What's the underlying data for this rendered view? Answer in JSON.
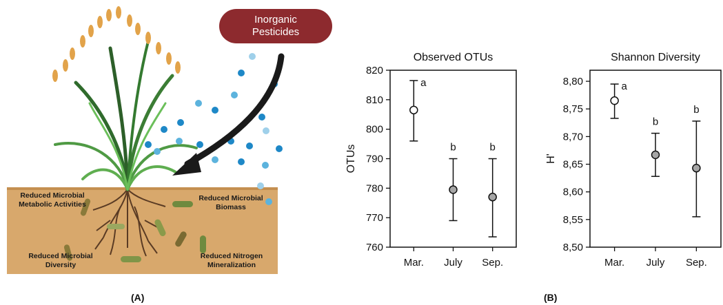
{
  "panel_a": {
    "badge": "Inorganic\nPesticides",
    "soil_labels": [
      "Reduced Microbial\nMetabolic Activities",
      "Reduced Microbial\nBiomass",
      "Reduced Microbial\nDiversity",
      "Reduced Nitrogen\nMineralization"
    ],
    "caption": "(A)"
  },
  "panel_b": {
    "caption": "(B)"
  },
  "chart_data": [
    {
      "type": "scatter",
      "title": "Observed OTUs",
      "ylabel": "OTUs",
      "xlabel": "",
      "categories": [
        "Mar.",
        "July",
        "Sep."
      ],
      "values": [
        806.5,
        779.5,
        777
      ],
      "err_low": [
        796,
        769,
        763.5
      ],
      "err_high": [
        816.5,
        790,
        790
      ],
      "groups": [
        "a",
        "b",
        "b"
      ],
      "ylim": [
        760,
        820
      ],
      "yticks": [
        "760",
        "770",
        "780",
        "790",
        "800",
        "810",
        "820"
      ],
      "colors": {
        "first": "#ffffff",
        "rest": "#a6a6a6"
      }
    },
    {
      "type": "scatter",
      "title": "Shannon Diversity",
      "ylabel": "H'",
      "xlabel": "",
      "categories": [
        "Mar.",
        "July",
        "Sep."
      ],
      "values": [
        8.765,
        8.667,
        8.643
      ],
      "err_low": [
        8.733,
        8.628,
        8.555
      ],
      "err_high": [
        8.795,
        8.706,
        8.728
      ],
      "groups": [
        "a",
        "b",
        "b"
      ],
      "ylim": [
        8.5,
        8.82
      ],
      "yticks": [
        "8,50",
        "8,55",
        "8,60",
        "8,65",
        "8,70",
        "8,75",
        "8,80"
      ],
      "colors": {
        "first": "#ffffff",
        "rest": "#a6a6a6"
      }
    }
  ]
}
